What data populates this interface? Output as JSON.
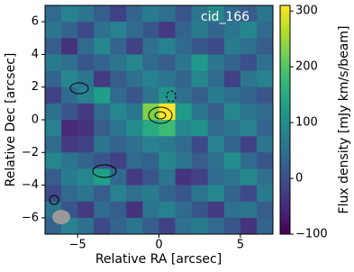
{
  "chart_data": {
    "type": "heatmap",
    "annotation": "cid_166",
    "xlabel": "Relative RA [arcsec]",
    "ylabel": "Relative Dec [arcsec]",
    "colorbar_label": "Flux density [mJy km/s/beam]",
    "colormap": "viridis",
    "xlim": [
      -7,
      7
    ],
    "ylim": [
      -7,
      7
    ],
    "xticks": [
      {
        "value": -5,
        "label": "−5"
      },
      0,
      5
    ],
    "yticks": [
      {
        "value": -6,
        "label": "−6"
      },
      {
        "value": -4,
        "label": "−4"
      },
      {
        "value": -2,
        "label": "−2"
      },
      0,
      2,
      4,
      6
    ],
    "zlim": [
      -100,
      310
    ],
    "zticks": [
      {
        "value": -100,
        "label": "−100"
      },
      0,
      100,
      200,
      300
    ],
    "x": [
      -6.5,
      -5.5,
      -4.5,
      -3.5,
      -2.5,
      -1.5,
      -0.5,
      0.5,
      1.5,
      2.5,
      3.5,
      4.5,
      5.5,
      6.5
    ],
    "y": [
      6.5,
      5.5,
      4.5,
      3.5,
      2.5,
      1.5,
      0.5,
      -0.5,
      -1.5,
      -2.5,
      -3.5,
      -4.5,
      -5.5,
      -6.5
    ],
    "z": [
      [
        40,
        80,
        60,
        20,
        -20,
        30,
        70,
        50,
        10,
        60,
        90,
        40,
        20,
        60
      ],
      [
        60,
        30,
        -10,
        50,
        80,
        40,
        10,
        -30,
        30,
        70,
        30,
        60,
        90,
        40
      ],
      [
        20,
        -40,
        40,
        90,
        30,
        -20,
        50,
        80,
        40,
        10,
        -10,
        70,
        50,
        20
      ],
      [
        70,
        50,
        10,
        30,
        60,
        90,
        40,
        20,
        60,
        120,
        60,
        30,
        0,
        50
      ],
      [
        30,
        90,
        60,
        -30,
        20,
        50,
        80,
        60,
        30,
        90,
        40,
        -20,
        60,
        80
      ],
      [
        -20,
        40,
        80,
        130,
        40,
        10,
        60,
        110,
        50,
        20,
        70,
        50,
        30,
        10
      ],
      [
        50,
        10,
        -30,
        40,
        90,
        60,
        230,
        310,
        120,
        60,
        20,
        90,
        60,
        40
      ],
      [
        80,
        -50,
        -40,
        20,
        60,
        100,
        150,
        180,
        90,
        110,
        40,
        60,
        80,
        30
      ],
      [
        40,
        -30,
        -20,
        60,
        30,
        50,
        80,
        70,
        40,
        -10,
        80,
        30,
        -20,
        60
      ],
      [
        90,
        60,
        30,
        10,
        -20,
        40,
        30,
        90,
        60,
        20,
        50,
        100,
        40,
        10
      ],
      [
        20,
        70,
        90,
        130,
        40,
        -30,
        10,
        60,
        -40,
        -20,
        40,
        60,
        90,
        50
      ],
      [
        -10,
        40,
        60,
        20,
        80,
        50,
        70,
        30,
        10,
        60,
        90,
        30,
        -10,
        70
      ],
      [
        60,
        10,
        -30,
        40,
        20,
        -40,
        60,
        80,
        40,
        10,
        -30,
        50,
        60,
        20
      ],
      [
        30,
        80,
        50,
        -10,
        30,
        60,
        20,
        -20,
        50,
        70,
        40,
        10,
        -40,
        30
      ]
    ]
  }
}
